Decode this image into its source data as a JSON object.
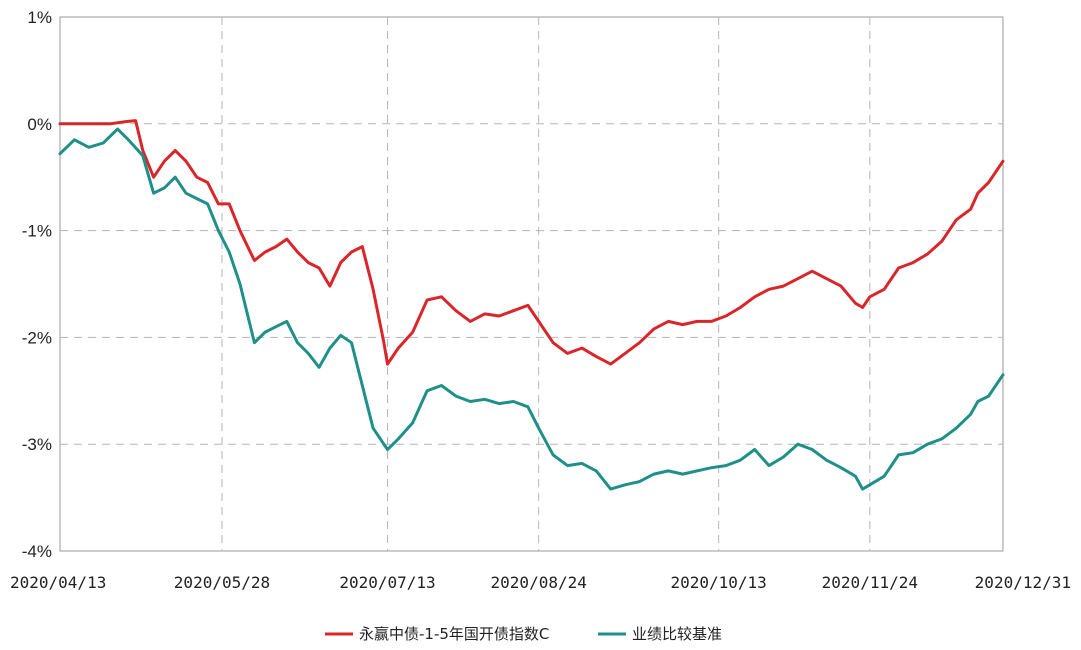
{
  "chart_data": {
    "type": "line",
    "title": "",
    "xlabel": "",
    "ylabel": "",
    "ylim": [
      -4,
      1
    ],
    "y_ticks": [
      1,
      0,
      -1,
      -2,
      -3,
      -4
    ],
    "y_tick_labels": [
      "1%",
      "0%",
      "-1%",
      "-2%",
      "-3%",
      "-4%"
    ],
    "x_range": [
      "2020-04-13",
      "2020-12-31"
    ],
    "x_ticks": [
      "2020-04-13",
      "2020-05-28",
      "2020-07-13",
      "2020-08-24",
      "2020-10-13",
      "2020-11-24",
      "2020-12-31"
    ],
    "x_tick_labels": [
      "2020/04/13",
      "2020/05/28",
      "2020/07/13",
      "2020/08/24",
      "2020/10/13",
      "2020/11/24",
      "2020/12/31"
    ],
    "grid": true,
    "legend_position": "bottom-center",
    "series": [
      {
        "name": "永赢中债-1-5年国开债指数C",
        "color": "#d9262a",
        "points": [
          [
            "2020-04-13",
            0.0
          ],
          [
            "2020-04-20",
            0.0
          ],
          [
            "2020-04-27",
            0.0
          ],
          [
            "2020-05-01",
            0.02
          ],
          [
            "2020-05-04",
            0.03
          ],
          [
            "2020-05-06",
            -0.25
          ],
          [
            "2020-05-09",
            -0.5
          ],
          [
            "2020-05-12",
            -0.35
          ],
          [
            "2020-05-15",
            -0.25
          ],
          [
            "2020-05-18",
            -0.35
          ],
          [
            "2020-05-21",
            -0.5
          ],
          [
            "2020-05-24",
            -0.55
          ],
          [
            "2020-05-27",
            -0.75
          ],
          [
            "2020-05-30",
            -0.75
          ],
          [
            "2020-06-02",
            -1.0
          ],
          [
            "2020-06-06",
            -1.28
          ],
          [
            "2020-06-09",
            -1.2
          ],
          [
            "2020-06-12",
            -1.15
          ],
          [
            "2020-06-15",
            -1.08
          ],
          [
            "2020-06-18",
            -1.2
          ],
          [
            "2020-06-21",
            -1.3
          ],
          [
            "2020-06-24",
            -1.35
          ],
          [
            "2020-06-27",
            -1.52
          ],
          [
            "2020-06-30",
            -1.3
          ],
          [
            "2020-07-03",
            -1.2
          ],
          [
            "2020-07-06",
            -1.15
          ],
          [
            "2020-07-09",
            -1.55
          ],
          [
            "2020-07-12",
            -2.05
          ],
          [
            "2020-07-13",
            -2.25
          ],
          [
            "2020-07-16",
            -2.1
          ],
          [
            "2020-07-20",
            -1.95
          ],
          [
            "2020-07-24",
            -1.65
          ],
          [
            "2020-07-28",
            -1.62
          ],
          [
            "2020-08-01",
            -1.75
          ],
          [
            "2020-08-05",
            -1.85
          ],
          [
            "2020-08-09",
            -1.78
          ],
          [
            "2020-08-13",
            -1.8
          ],
          [
            "2020-08-17",
            -1.75
          ],
          [
            "2020-08-21",
            -1.7
          ],
          [
            "2020-08-24",
            -1.85
          ],
          [
            "2020-08-28",
            -2.05
          ],
          [
            "2020-09-01",
            -2.15
          ],
          [
            "2020-09-05",
            -2.1
          ],
          [
            "2020-09-09",
            -2.18
          ],
          [
            "2020-09-13",
            -2.25
          ],
          [
            "2020-09-17",
            -2.15
          ],
          [
            "2020-09-21",
            -2.05
          ],
          [
            "2020-09-25",
            -1.92
          ],
          [
            "2020-09-29",
            -1.85
          ],
          [
            "2020-10-03",
            -1.88
          ],
          [
            "2020-10-07",
            -1.85
          ],
          [
            "2020-10-11",
            -1.85
          ],
          [
            "2020-10-15",
            -1.8
          ],
          [
            "2020-10-19",
            -1.72
          ],
          [
            "2020-10-23",
            -1.62
          ],
          [
            "2020-10-27",
            -1.55
          ],
          [
            "2020-10-31",
            -1.52
          ],
          [
            "2020-11-04",
            -1.45
          ],
          [
            "2020-11-08",
            -1.38
          ],
          [
            "2020-11-12",
            -1.45
          ],
          [
            "2020-11-16",
            -1.52
          ],
          [
            "2020-11-20",
            -1.68
          ],
          [
            "2020-11-22",
            -1.72
          ],
          [
            "2020-11-24",
            -1.62
          ],
          [
            "2020-11-28",
            -1.55
          ],
          [
            "2020-12-02",
            -1.35
          ],
          [
            "2020-12-06",
            -1.3
          ],
          [
            "2020-12-10",
            -1.22
          ],
          [
            "2020-12-14",
            -1.1
          ],
          [
            "2020-12-18",
            -0.9
          ],
          [
            "2020-12-22",
            -0.8
          ],
          [
            "2020-12-24",
            -0.65
          ],
          [
            "2020-12-27",
            -0.55
          ],
          [
            "2020-12-31",
            -0.35
          ]
        ]
      },
      {
        "name": "业绩比较基准",
        "color": "#1f8f8a",
        "points": [
          [
            "2020-04-13",
            -0.28
          ],
          [
            "2020-04-17",
            -0.15
          ],
          [
            "2020-04-21",
            -0.22
          ],
          [
            "2020-04-25",
            -0.18
          ],
          [
            "2020-04-29",
            -0.05
          ],
          [
            "2020-05-02",
            -0.15
          ],
          [
            "2020-05-06",
            -0.3
          ],
          [
            "2020-05-09",
            -0.65
          ],
          [
            "2020-05-12",
            -0.6
          ],
          [
            "2020-05-15",
            -0.5
          ],
          [
            "2020-05-18",
            -0.65
          ],
          [
            "2020-05-21",
            -0.7
          ],
          [
            "2020-05-24",
            -0.75
          ],
          [
            "2020-05-27",
            -1.0
          ],
          [
            "2020-05-30",
            -1.2
          ],
          [
            "2020-06-02",
            -1.5
          ],
          [
            "2020-06-06",
            -2.05
          ],
          [
            "2020-06-09",
            -1.95
          ],
          [
            "2020-06-12",
            -1.9
          ],
          [
            "2020-06-15",
            -1.85
          ],
          [
            "2020-06-18",
            -2.05
          ],
          [
            "2020-06-21",
            -2.15
          ],
          [
            "2020-06-24",
            -2.28
          ],
          [
            "2020-06-27",
            -2.1
          ],
          [
            "2020-06-30",
            -1.98
          ],
          [
            "2020-07-03",
            -2.05
          ],
          [
            "2020-07-06",
            -2.45
          ],
          [
            "2020-07-09",
            -2.85
          ],
          [
            "2020-07-13",
            -3.05
          ],
          [
            "2020-07-16",
            -2.95
          ],
          [
            "2020-07-20",
            -2.8
          ],
          [
            "2020-07-24",
            -2.5
          ],
          [
            "2020-07-28",
            -2.45
          ],
          [
            "2020-08-01",
            -2.55
          ],
          [
            "2020-08-05",
            -2.6
          ],
          [
            "2020-08-09",
            -2.58
          ],
          [
            "2020-08-13",
            -2.62
          ],
          [
            "2020-08-17",
            -2.6
          ],
          [
            "2020-08-21",
            -2.65
          ],
          [
            "2020-08-24",
            -2.85
          ],
          [
            "2020-08-28",
            -3.1
          ],
          [
            "2020-09-01",
            -3.2
          ],
          [
            "2020-09-05",
            -3.18
          ],
          [
            "2020-09-09",
            -3.25
          ],
          [
            "2020-09-13",
            -3.42
          ],
          [
            "2020-09-17",
            -3.38
          ],
          [
            "2020-09-21",
            -3.35
          ],
          [
            "2020-09-25",
            -3.28
          ],
          [
            "2020-09-29",
            -3.25
          ],
          [
            "2020-10-03",
            -3.28
          ],
          [
            "2020-10-07",
            -3.25
          ],
          [
            "2020-10-11",
            -3.22
          ],
          [
            "2020-10-15",
            -3.2
          ],
          [
            "2020-10-19",
            -3.15
          ],
          [
            "2020-10-23",
            -3.05
          ],
          [
            "2020-10-27",
            -3.2
          ],
          [
            "2020-10-31",
            -3.12
          ],
          [
            "2020-11-04",
            -3.0
          ],
          [
            "2020-11-08",
            -3.05
          ],
          [
            "2020-11-12",
            -3.15
          ],
          [
            "2020-11-16",
            -3.22
          ],
          [
            "2020-11-20",
            -3.3
          ],
          [
            "2020-11-22",
            -3.42
          ],
          [
            "2020-11-24",
            -3.38
          ],
          [
            "2020-11-28",
            -3.3
          ],
          [
            "2020-12-02",
            -3.1
          ],
          [
            "2020-12-06",
            -3.08
          ],
          [
            "2020-12-10",
            -3.0
          ],
          [
            "2020-12-14",
            -2.95
          ],
          [
            "2020-12-18",
            -2.85
          ],
          [
            "2020-12-22",
            -2.72
          ],
          [
            "2020-12-24",
            -2.6
          ],
          [
            "2020-12-27",
            -2.55
          ],
          [
            "2020-12-31",
            -2.35
          ]
        ]
      }
    ]
  }
}
